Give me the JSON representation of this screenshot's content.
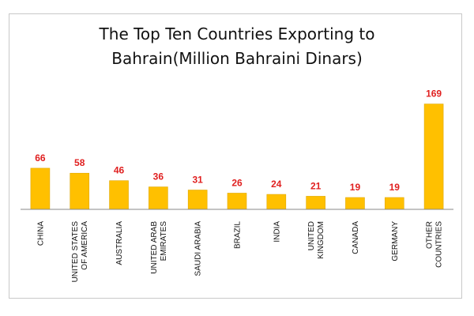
{
  "title_line1": "The Top Ten Countries Exporting to",
  "title_line2": "Bahrain(Million Bahraini Dinars)",
  "colors": {
    "bar": "#FFC000",
    "bar_stroke": "#E0A800",
    "label": "#E02020",
    "axis": "#888888",
    "text": "#111111"
  },
  "chart_data": {
    "type": "bar",
    "title": "The Top Ten Countries Exporting to Bahrain(Million Bahraini Dinars)",
    "categories": [
      [
        "CHINA"
      ],
      [
        "UNITED STATES",
        "OF AMERICA"
      ],
      [
        "AUSTRALIA"
      ],
      [
        "UNITED ARAB",
        "EMIRATES"
      ],
      [
        "SAUDI ARABIA"
      ],
      [
        "BRAZIL"
      ],
      [
        "INDIA"
      ],
      [
        "UNITED",
        "KINGDOM"
      ],
      [
        "CANADA"
      ],
      [
        "GERMANY"
      ],
      [
        "OTHER",
        "COUNTRIES"
      ]
    ],
    "values": [
      66,
      58,
      46,
      36,
      31,
      26,
      24,
      21,
      19,
      19,
      169
    ],
    "ylim": [
      0,
      190
    ],
    "xlabel": "",
    "ylabel": "",
    "grid": false,
    "legend": "none",
    "data_labels": true
  }
}
